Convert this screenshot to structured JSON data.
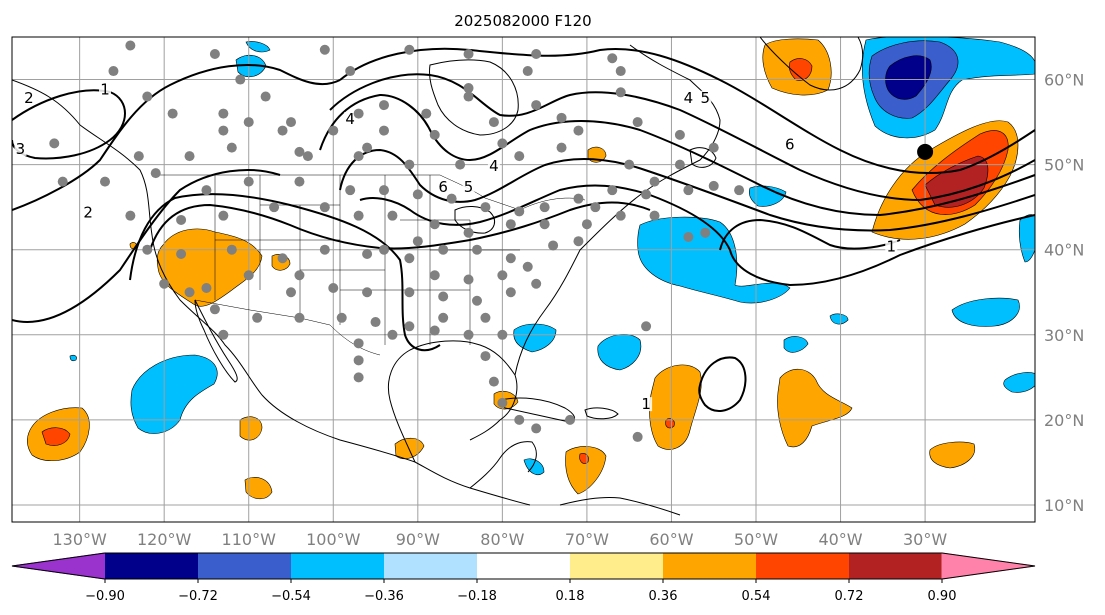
{
  "title": "2025082000 F120",
  "map": {
    "lon_min": -138,
    "lon_max": -17,
    "lat_min": 8,
    "lat_max": 65,
    "lon_ticks": [
      {
        "value": -130,
        "label": "130°W"
      },
      {
        "value": -120,
        "label": "120°W"
      },
      {
        "value": -110,
        "label": "110°W"
      },
      {
        "value": -100,
        "label": "100°W"
      },
      {
        "value": -90,
        "label": "90°W"
      },
      {
        "value": -80,
        "label": "80°W"
      },
      {
        "value": -70,
        "label": "70°W"
      },
      {
        "value": -60,
        "label": "60°W"
      },
      {
        "value": -50,
        "label": "50°W"
      },
      {
        "value": -40,
        "label": "40°W"
      },
      {
        "value": -30,
        "label": "30°W"
      }
    ],
    "lat_ticks": [
      {
        "value": 60,
        "label": "60°N"
      },
      {
        "value": 50,
        "label": "50°N"
      },
      {
        "value": 40,
        "label": "40°N"
      },
      {
        "value": 30,
        "label": "30°N"
      },
      {
        "value": 20,
        "label": "20°N"
      },
      {
        "value": 10,
        "label": "10°N"
      }
    ],
    "grid": true,
    "center_marker": {
      "lon": -30,
      "lat": 51.5
    },
    "contour_labels": [
      {
        "text": "1",
        "lon": -127,
        "lat": 58.5
      },
      {
        "text": "2",
        "lon": -136,
        "lat": 57.5
      },
      {
        "text": "3",
        "lon": -137,
        "lat": 51.5
      },
      {
        "text": "2",
        "lon": -129,
        "lat": 44
      },
      {
        "text": "4",
        "lon": -98,
        "lat": 55
      },
      {
        "text": "6",
        "lon": -87,
        "lat": 47
      },
      {
        "text": "5",
        "lon": -84,
        "lat": 47
      },
      {
        "text": "4",
        "lon": -81,
        "lat": 49.5
      },
      {
        "text": "4",
        "lon": -58,
        "lat": 57.5
      },
      {
        "text": "5",
        "lon": -56,
        "lat": 57.5
      },
      {
        "text": "6",
        "lon": -46,
        "lat": 52
      },
      {
        "text": "1",
        "lon": -34,
        "lat": 40
      },
      {
        "text": "1",
        "lon": -63,
        "lat": 21.5
      }
    ]
  },
  "colorbar": {
    "levels": [
      "−0.90",
      "−0.72",
      "−0.54",
      "−0.36",
      "−0.18",
      "0.18",
      "0.36",
      "0.54",
      "0.72",
      "0.90"
    ],
    "colors": [
      "#9a32cd",
      "#00008b",
      "#3a5fcd",
      "#00bfff",
      "#b0e2ff",
      "#ffffff",
      "#ffec8b",
      "#ffa500",
      "#ff4500",
      "#b22222",
      "#ff82ab"
    ],
    "extend": "both"
  },
  "stations": [
    [
      -124,
      64
    ],
    [
      -114,
      63
    ],
    [
      -101,
      63.5
    ],
    [
      -91,
      63.5
    ],
    [
      -84,
      63
    ],
    [
      -76,
      63
    ],
    [
      -67,
      62.5
    ],
    [
      -126,
      61
    ],
    [
      -111,
      60
    ],
    [
      -98,
      61
    ],
    [
      -84,
      59
    ],
    [
      -77,
      61
    ],
    [
      -66,
      61
    ],
    [
      -122,
      58
    ],
    [
      -108,
      58
    ],
    [
      -94,
      57
    ],
    [
      -84,
      58
    ],
    [
      -76,
      57
    ],
    [
      -66,
      58.5
    ],
    [
      -113,
      56
    ],
    [
      -110,
      55
    ],
    [
      -105,
      55
    ],
    [
      -97,
      56
    ],
    [
      -89,
      56
    ],
    [
      -81,
      55
    ],
    [
      -73,
      55.5
    ],
    [
      -64,
      55
    ],
    [
      -119,
      56
    ],
    [
      -113,
      54
    ],
    [
      -106,
      54
    ],
    [
      -100,
      54
    ],
    [
      -94,
      54
    ],
    [
      -88,
      53.5
    ],
    [
      -80,
      52.5
    ],
    [
      -71,
      54
    ],
    [
      -59,
      53.5
    ],
    [
      -55,
      52
    ],
    [
      -133,
      52.5
    ],
    [
      -123,
      51
    ],
    [
      -117,
      51
    ],
    [
      -112,
      52
    ],
    [
      -103,
      51
    ],
    [
      -97,
      51
    ],
    [
      -91,
      50
    ],
    [
      -85,
      50
    ],
    [
      -78,
      51
    ],
    [
      -73,
      52
    ],
    [
      -65,
      50
    ],
    [
      -59,
      50
    ],
    [
      -132,
      48
    ],
    [
      -127,
      48
    ],
    [
      -121,
      49
    ],
    [
      -115,
      47
    ],
    [
      -110,
      48
    ],
    [
      -104,
      48
    ],
    [
      -98,
      47
    ],
    [
      -94,
      47
    ],
    [
      -90,
      46.5
    ],
    [
      -86,
      46
    ],
    [
      -82,
      45
    ],
    [
      -78,
      44.5
    ],
    [
      -75,
      45
    ],
    [
      -71,
      46
    ],
    [
      -67,
      47
    ],
    [
      -63,
      46.5
    ],
    [
      -58,
      47
    ],
    [
      -55,
      47.5
    ],
    [
      -124,
      44
    ],
    [
      -118,
      43.5
    ],
    [
      -113,
      44
    ],
    [
      -107,
      45
    ],
    [
      -101,
      45
    ],
    [
      -97,
      44
    ],
    [
      -93,
      44
    ],
    [
      -88,
      43
    ],
    [
      -84,
      42
    ],
    [
      -79,
      43
    ],
    [
      -75,
      43
    ],
    [
      -70,
      43
    ],
    [
      -66,
      44
    ],
    [
      -62,
      44
    ],
    [
      -56,
      42
    ],
    [
      -52,
      47
    ],
    [
      -122,
      40
    ],
    [
      -118,
      39.5
    ],
    [
      -112,
      40
    ],
    [
      -106,
      39
    ],
    [
      -101,
      40
    ],
    [
      -96,
      39.5
    ],
    [
      -91,
      39
    ],
    [
      -87,
      40
    ],
    [
      -83,
      40
    ],
    [
      -79,
      39
    ],
    [
      -77,
      38
    ],
    [
      -74,
      40.5
    ],
    [
      -71,
      41
    ],
    [
      -120,
      36
    ],
    [
      -115,
      35.5
    ],
    [
      -110,
      37
    ],
    [
      -105,
      35
    ],
    [
      -100,
      35.5
    ],
    [
      -96,
      35
    ],
    [
      -91,
      35
    ],
    [
      -87,
      34.5
    ],
    [
      -83,
      34
    ],
    [
      -79,
      35
    ],
    [
      -76,
      36
    ],
    [
      -114,
      33
    ],
    [
      -109,
      32
    ],
    [
      -104,
      32
    ],
    [
      -99,
      32
    ],
    [
      -95,
      31.5
    ],
    [
      -91,
      31
    ],
    [
      -87,
      32
    ],
    [
      -82,
      32
    ],
    [
      -97,
      29
    ],
    [
      -93,
      30
    ],
    [
      -88,
      30.5
    ],
    [
      -84,
      30
    ],
    [
      -80,
      30
    ],
    [
      -97,
      27
    ],
    [
      -82,
      27.5
    ],
    [
      -97,
      25
    ],
    [
      -81,
      24.5
    ],
    [
      -80,
      22
    ],
    [
      -78,
      20
    ],
    [
      -76,
      19
    ],
    [
      -72,
      20
    ],
    [
      -64,
      18
    ],
    [
      -63,
      31
    ],
    [
      -117,
      35
    ],
    [
      -104,
      37
    ],
    [
      -94,
      40
    ],
    [
      -88,
      37
    ],
    [
      -84,
      36.5
    ],
    [
      -90,
      41
    ],
    [
      -96,
      52
    ],
    [
      -104,
      51.5
    ],
    [
      -58,
      41.5
    ],
    [
      -80,
      37
    ],
    [
      -69,
      45
    ],
    [
      -62,
      48
    ],
    [
      -113,
      30
    ]
  ]
}
